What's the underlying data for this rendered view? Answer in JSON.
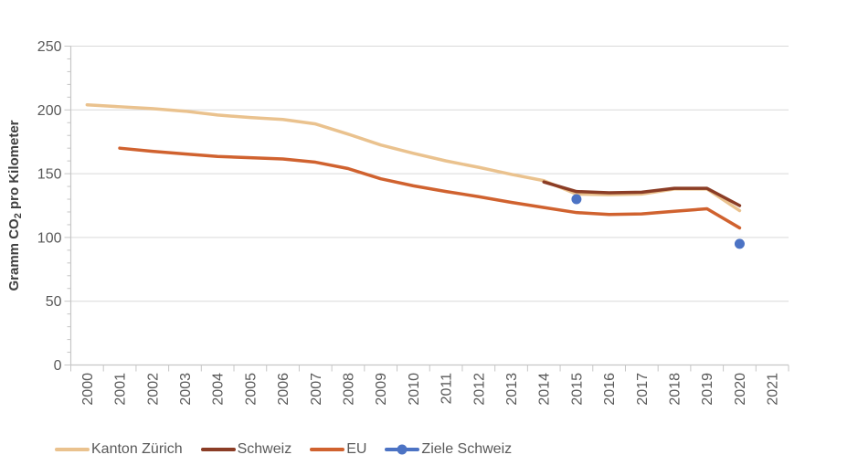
{
  "chart_data": {
    "type": "line",
    "ylabel": {
      "pre": "Gramm CO",
      "sub": "2",
      "post": " pro Kilometer"
    },
    "ylabel_text": "Gramm CO2 pro Kilometer",
    "x_categories": [
      "2000",
      "2001",
      "2002",
      "2003",
      "2004",
      "2005",
      "2006",
      "2007",
      "2008",
      "2009",
      "2010",
      "2011",
      "2012",
      "2013",
      "2014",
      "2015",
      "2016",
      "2017",
      "2018",
      "2019",
      "2020",
      "2021"
    ],
    "y_axis": {
      "min": 0,
      "max": 250,
      "major_step": 50,
      "minor_step": 10,
      "tick_labels": [
        "0",
        "50",
        "100",
        "150",
        "200",
        "250"
      ]
    },
    "grid": "horizontal",
    "legend_position": "bottom",
    "series": [
      {
        "name": "Kanton Zürich",
        "type": "line",
        "color": "#EAC28E",
        "values": [
          204,
          202.5,
          201,
          199,
          196,
          194,
          192.5,
          189,
          181,
          172.5,
          166,
          160,
          155,
          149.5,
          144.5,
          134,
          133.5,
          134,
          138,
          138,
          121,
          null
        ]
      },
      {
        "name": "Schweiz",
        "type": "line",
        "color": "#8B3D26",
        "values": [
          null,
          null,
          null,
          null,
          null,
          null,
          null,
          null,
          null,
          null,
          null,
          null,
          null,
          null,
          143.5,
          136,
          135,
          135.5,
          138.5,
          138.5,
          125,
          null
        ]
      },
      {
        "name": "EU",
        "type": "line",
        "color": "#D0622F",
        "values": [
          null,
          170,
          167.5,
          165.5,
          163.5,
          162.5,
          161.5,
          159,
          154,
          146,
          140.5,
          136,
          132,
          127.5,
          123.5,
          119.5,
          118,
          118.5,
          120.5,
          122.5,
          107.5,
          null
        ]
      },
      {
        "name": "Ziele Schweiz",
        "type": "scatter",
        "color": "#4C73C4",
        "values": [
          null,
          null,
          null,
          null,
          null,
          null,
          null,
          null,
          null,
          null,
          null,
          null,
          null,
          null,
          null,
          130,
          null,
          null,
          null,
          null,
          95,
          null
        ]
      }
    ]
  },
  "colors": {
    "grid": "#D9D9D9",
    "axis": "#C6C6C6",
    "tick_label": "#595959",
    "axis_title": "#404040",
    "background": "#FFFFFF"
  }
}
